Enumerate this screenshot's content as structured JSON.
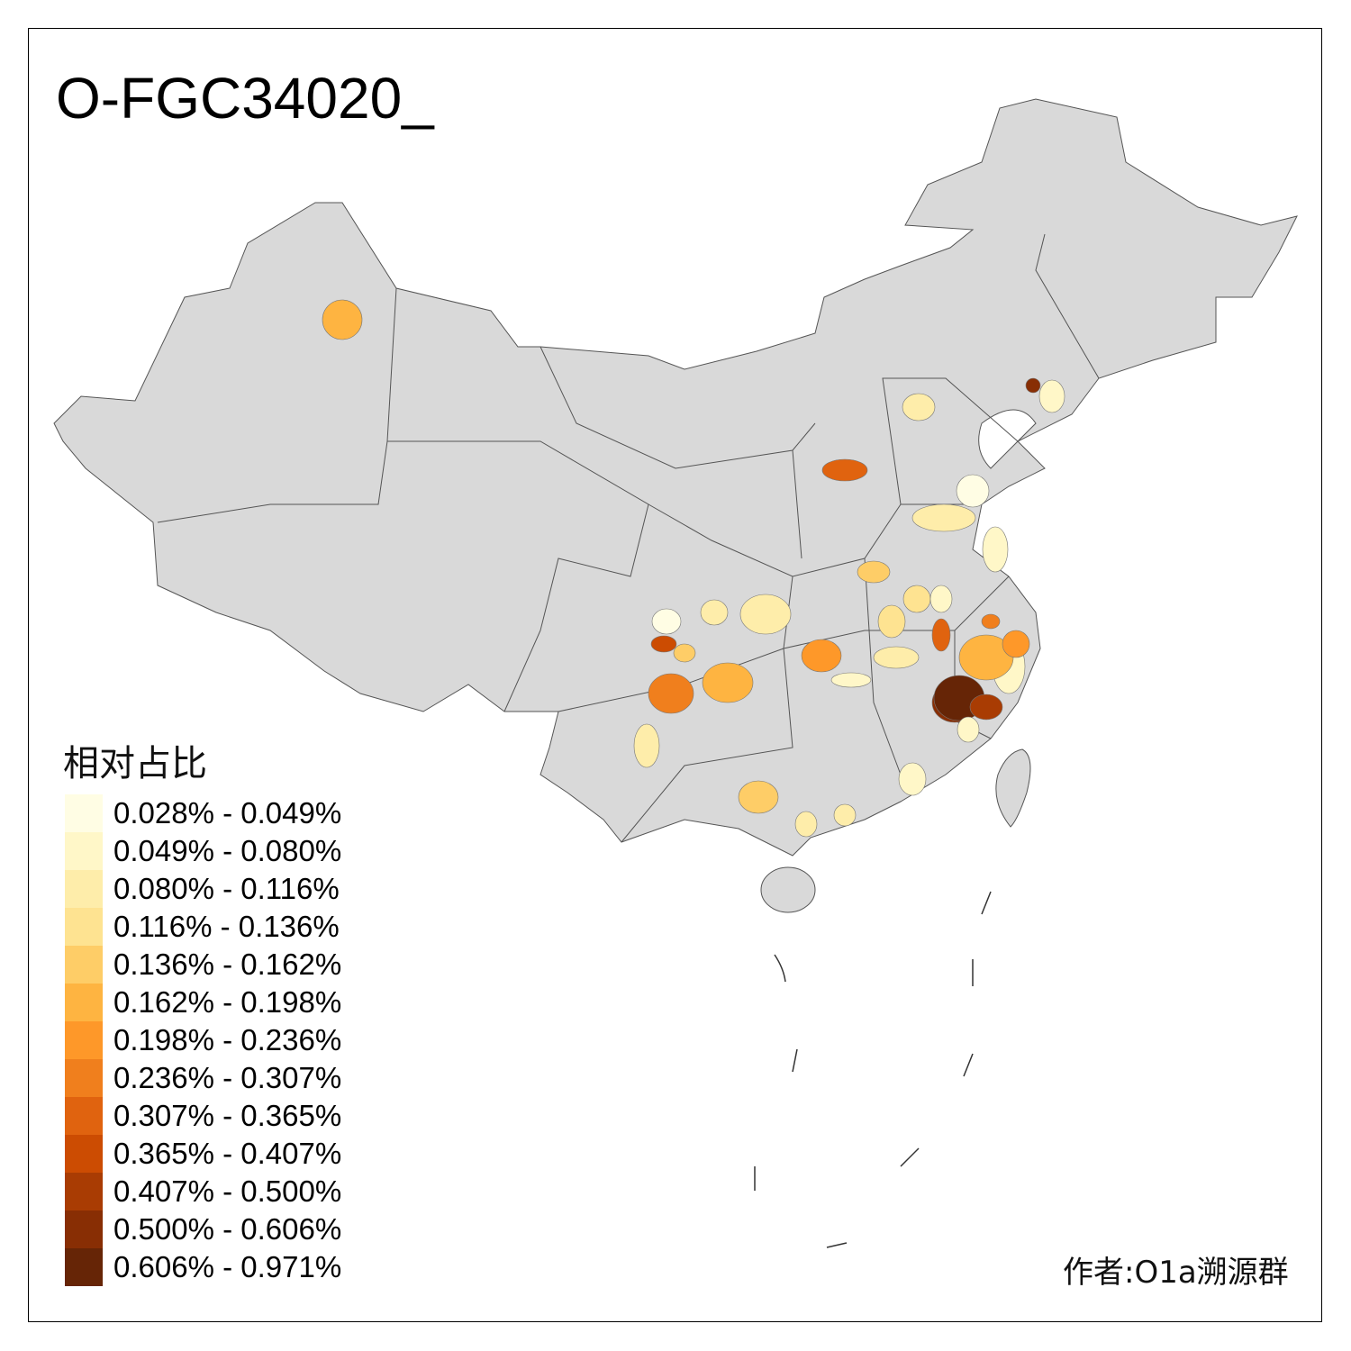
{
  "title": "O-FGC34020_",
  "legend": {
    "title": "相对占比",
    "items": [
      {
        "label": "0.028% - 0.049%",
        "color": "#FFFDE4"
      },
      {
        "label": "0.049% - 0.080%",
        "color": "#FFF7C8"
      },
      {
        "label": "0.080% - 0.116%",
        "color": "#FEEDAA"
      },
      {
        "label": "0.116% - 0.136%",
        "color": "#FEE391"
      },
      {
        "label": "0.136% - 0.162%",
        "color": "#FECD67"
      },
      {
        "label": "0.162% - 0.198%",
        "color": "#FEB441"
      },
      {
        "label": "0.198% - 0.236%",
        "color": "#FE9829"
      },
      {
        "label": "0.236% - 0.307%",
        "color": "#F07F1D"
      },
      {
        "label": "0.307% - 0.365%",
        "color": "#E0630F"
      },
      {
        "label": "0.365% - 0.407%",
        "color": "#CC4C02"
      },
      {
        "label": "0.407% - 0.500%",
        "color": "#A93C03"
      },
      {
        "label": "0.500% - 0.606%",
        "color": "#882E04"
      },
      {
        "label": "0.606% - 0.971%",
        "color": "#662506"
      }
    ]
  },
  "map": {
    "base_color": "#D9D9D9",
    "border_color": "#555555"
  },
  "regions": [
    {
      "bin": 5
    },
    {
      "bin": 11
    },
    {
      "bin": 2
    },
    {
      "bin": 8
    },
    {
      "bin": 1
    },
    {
      "bin": 0
    },
    {
      "bin": 2
    },
    {
      "bin": 4
    },
    {
      "bin": 0
    },
    {
      "bin": 2
    },
    {
      "bin": 2
    },
    {
      "bin": 3
    },
    {
      "bin": 9
    },
    {
      "bin": 4
    },
    {
      "bin": 8
    },
    {
      "bin": 7
    },
    {
      "bin": 1
    },
    {
      "bin": 6
    },
    {
      "bin": 2
    },
    {
      "bin": 3
    },
    {
      "bin": 11
    },
    {
      "bin": 5
    },
    {
      "bin": 7
    },
    {
      "bin": 1
    },
    {
      "bin": 12
    },
    {
      "bin": 10
    },
    {
      "bin": 1
    },
    {
      "bin": 5
    },
    {
      "bin": 6
    },
    {
      "bin": 2
    },
    {
      "bin": 1
    },
    {
      "bin": 4
    },
    {
      "bin": 1
    },
    {
      "bin": 2
    },
    {
      "bin": 2
    },
    {
      "bin": 1
    }
  ],
  "credit": "作者:O1a溯源群"
}
